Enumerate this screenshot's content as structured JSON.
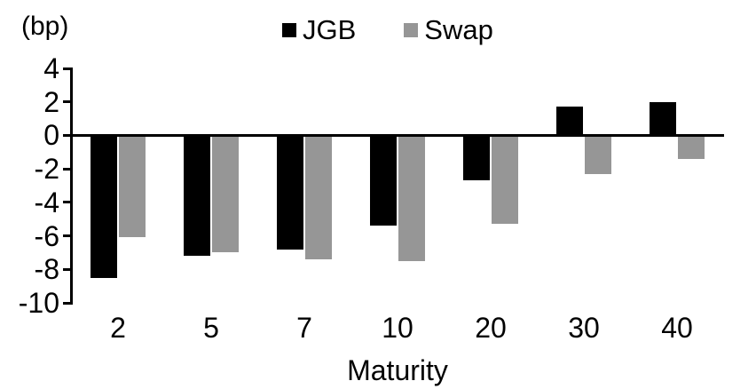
{
  "chart_data": {
    "type": "bar",
    "title": "",
    "unit_label": "(bp)",
    "xlabel": "Maturity",
    "ylabel": "",
    "categories": [
      "2",
      "5",
      "7",
      "10",
      "20",
      "30",
      "40"
    ],
    "series": [
      {
        "name": "JGB",
        "color": "#000000",
        "values": [
          -8.5,
          -7.2,
          -6.8,
          -5.4,
          -2.7,
          1.7,
          2.0
        ]
      },
      {
        "name": "Swap",
        "color": "#969696",
        "values": [
          -6.1,
          -7.0,
          -7.4,
          -7.5,
          -5.3,
          -2.3,
          -1.4
        ]
      }
    ],
    "ylim": [
      -10,
      4
    ],
    "yticks": [
      4,
      2,
      0,
      -2,
      -4,
      -6,
      -8,
      -10
    ],
    "grid": false,
    "legend_position": "top-center",
    "axis_color": "#000000",
    "background_color": "#ffffff"
  }
}
